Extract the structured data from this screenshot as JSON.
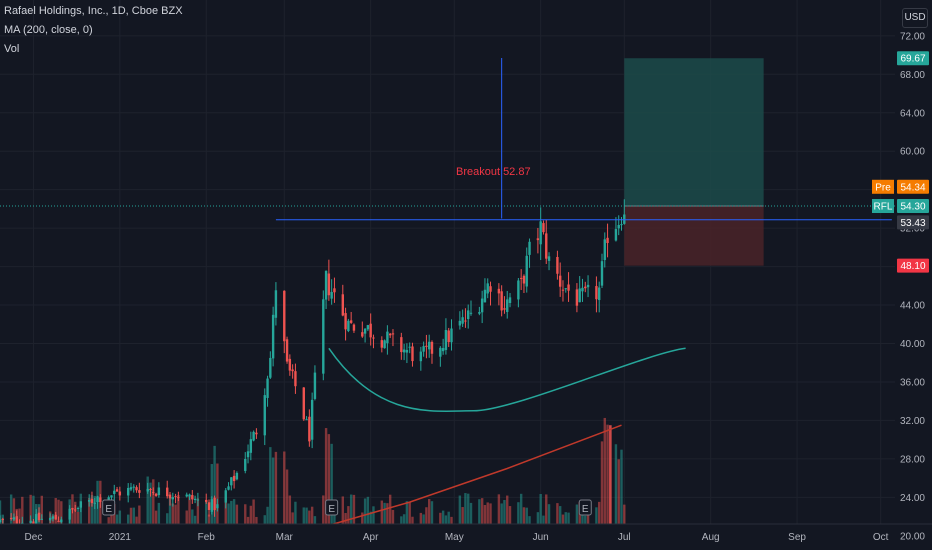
{
  "header": {
    "symbol_line": "Rafael Holdings, Inc., 1D, Cboe BZX",
    "ma_line": "MA (200, close, 0)",
    "vol_line": "Vol"
  },
  "currency_button": "USD",
  "colors": {
    "background": "#131722",
    "grid": "#1e222d",
    "up": "#26a69a",
    "down": "#ef5350",
    "ma": "#c0392b",
    "cup_curve": "#26a69a",
    "blue_line": "#2962ff",
    "pre_badge": "#f57c00",
    "price_badge": "#26a69a",
    "level_badge": "#363a45",
    "stop_badge": "#f23645",
    "target_zone": "#1c4b4a",
    "stop_zone": "#4a2328",
    "annotation": "#f23645"
  },
  "chart_data": {
    "type": "candlestick",
    "title": "Rafael Holdings, Inc., 1D, Cboe BZX",
    "ylim": [
      18,
      75
    ],
    "y_ticks": [
      20.0,
      24.0,
      28.0,
      32.0,
      36.0,
      40.0,
      44.0,
      48.0,
      52.0,
      56.0,
      60.0,
      64.0,
      68.0,
      72.0
    ],
    "x_ticks": [
      "Dec",
      "2021",
      "Feb",
      "Mar",
      "Apr",
      "May",
      "Jun",
      "Jul",
      "Aug",
      "Sep",
      "Oct"
    ],
    "x_tick_dates": [
      "2020-12-01",
      "2021-01-01",
      "2021-02-01",
      "2021-03-01",
      "2021-04-01",
      "2021-05-01",
      "2021-06-01",
      "2021-07-01",
      "2021-08-01",
      "2021-09-01",
      "2021-10-01"
    ],
    "x_start": "2020-11-19",
    "close_path": [
      [
        "2020-11-19",
        21.5
      ],
      [
        "2020-12-10",
        21.8
      ],
      [
        "2020-12-24",
        24.0
      ],
      [
        "2021-01-08",
        25.0
      ],
      [
        "2021-01-22",
        24.3
      ],
      [
        "2021-02-05",
        23.0
      ],
      [
        "2021-02-12",
        26.5
      ],
      [
        "2021-02-19",
        31.0
      ],
      [
        "2021-02-24",
        38.5
      ],
      [
        "2021-02-26",
        46.0
      ],
      [
        "2021-03-02",
        37.5
      ],
      [
        "2021-03-05",
        35.5
      ],
      [
        "2021-03-10",
        30.5
      ],
      [
        "2021-03-12",
        36.0
      ],
      [
        "2021-03-16",
        46.5
      ],
      [
        "2021-03-19",
        45.0
      ],
      [
        "2021-03-24",
        42.0
      ],
      [
        "2021-03-31",
        41.5
      ],
      [
        "2021-04-09",
        40.0
      ],
      [
        "2021-04-19",
        38.5
      ],
      [
        "2021-04-28",
        40.5
      ],
      [
        "2021-05-07",
        43.0
      ],
      [
        "2021-05-14",
        46.5
      ],
      [
        "2021-05-19",
        44.0
      ],
      [
        "2021-05-25",
        46.0
      ],
      [
        "2021-05-28",
        49.5
      ],
      [
        "2021-06-01",
        52.0
      ],
      [
        "2021-06-04",
        48.5
      ],
      [
        "2021-06-09",
        46.0
      ],
      [
        "2021-06-15",
        44.5
      ],
      [
        "2021-06-22",
        45.5
      ],
      [
        "2021-06-25",
        51.5
      ],
      [
        "2021-06-29",
        53.0
      ],
      [
        "2021-07-01",
        54.3
      ]
    ],
    "volume_spikes": [
      [
        "2020-12-25",
        0.3
      ],
      [
        "2021-01-12",
        0.35
      ],
      [
        "2021-02-04",
        0.55
      ],
      [
        "2021-02-25",
        0.6
      ],
      [
        "2021-03-01",
        0.5
      ],
      [
        "2021-03-17",
        0.65
      ],
      [
        "2021-06-24",
        0.75
      ],
      [
        "2021-06-29",
        0.55
      ]
    ],
    "big_volume_bar": [
      "2021-06-26",
      0.97
    ],
    "ma200": [
      [
        "2021-02-20",
        19.0
      ],
      [
        "2021-04-15",
        23.5
      ],
      [
        "2021-05-20",
        27.0
      ],
      [
        "2021-06-30",
        31.5
      ]
    ],
    "breakout_line": {
      "price": 52.87,
      "from": "2021-02-26",
      "to": "2021-10-05"
    },
    "dotted_price_line": 54.3,
    "annotation": {
      "text": "Breakout 52.87",
      "date": "2021-05-15",
      "price": 57.5
    },
    "vertical_marker": {
      "date": "2021-05-18",
      "from": 53.0,
      "to": 69.7
    },
    "cup_curve": {
      "start": [
        "2021-03-17",
        39.5
      ],
      "bottom": [
        "2021-05-08",
        33.0
      ],
      "end": [
        "2021-07-23",
        39.5
      ]
    },
    "position": {
      "entry": 54.3,
      "target": 69.67,
      "stop": 48.1,
      "from": "2021-07-01",
      "to": "2021-08-20"
    },
    "price_badges": [
      {
        "label": "",
        "value": "69.67",
        "price": 69.67,
        "color": "#26a69a"
      },
      {
        "label": "Pre",
        "value": "54.34",
        "price": 56.3,
        "color": "#f57c00"
      },
      {
        "label": "RFL",
        "value": "54.30",
        "price": 54.3,
        "color": "#26a69a"
      },
      {
        "label": "",
        "value": "53.43",
        "price": 52.6,
        "color": "#363a45"
      },
      {
        "label": "",
        "value": "48.10",
        "price": 48.1,
        "color": "#f23645"
      }
    ],
    "earnings_markers": [
      {
        "label": "E",
        "date": "2020-12-28"
      },
      {
        "label": "E",
        "date": "2021-03-18"
      },
      {
        "label": "E",
        "date": "2021-06-17"
      }
    ]
  }
}
